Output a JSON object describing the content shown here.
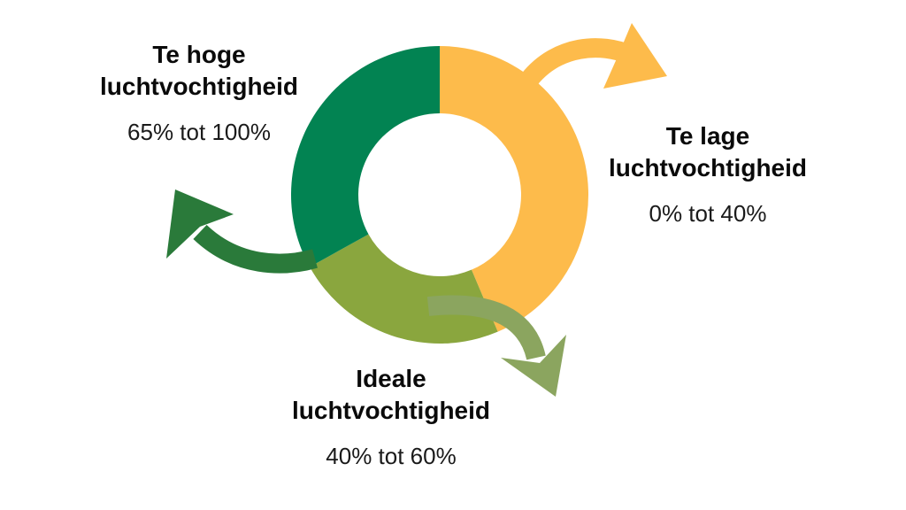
{
  "chart_data": {
    "type": "pie",
    "donut": true,
    "segments": [
      {
        "key": "low",
        "title": "Te lage luchtvochtigheid",
        "range": "0% tot 40%",
        "value": 40,
        "color": "#FDBB4B",
        "arrow_color": "#FDBB4B"
      },
      {
        "key": "ideal",
        "title": "Ideale luchtvochtigheid",
        "range": "40% tot 60%",
        "value": 20,
        "color": "#8AA63E",
        "arrow_color": "#8BA55F"
      },
      {
        "key": "high",
        "title": "Te hoge luchtvochtigheid",
        "range": "65% tot 100%",
        "value": 35,
        "color": "#028352",
        "arrow_color": "#2A7A3A"
      }
    ]
  },
  "labels": {
    "high": {
      "line1": "Te hoge",
      "line2": "luchtvochtigheid",
      "range": "65% tot 100%"
    },
    "low": {
      "line1": "Te lage",
      "line2": "luchtvochtigheid",
      "range": "0% tot 40%"
    },
    "ideal": {
      "line1": "Ideale",
      "line2": "luchtvochtigheid",
      "range": "40% tot 60%"
    }
  },
  "colors": {
    "background": "#FFFFFF",
    "text": "#0A0A0A"
  }
}
